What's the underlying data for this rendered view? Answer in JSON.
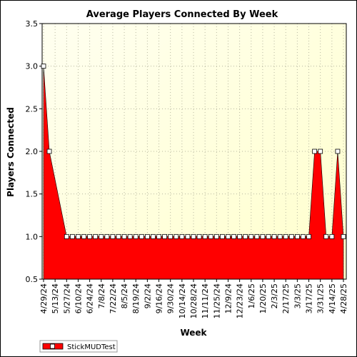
{
  "chart_data": {
    "type": "area",
    "title": "Average Players Connected By Week",
    "xlabel": "Week",
    "ylabel": "Players Connected",
    "ylim": [
      0.5,
      3.5
    ],
    "yticks": [
      "0.5",
      "1.0",
      "1.5",
      "2.0",
      "2.5",
      "3.0",
      "3.5"
    ],
    "grid": true,
    "legend_position": "bottom-left",
    "x_tick_labels": [
      "4/29/24",
      "5/13/24",
      "5/27/24",
      "6/10/24",
      "6/24/24",
      "7/8/24",
      "7/22/24",
      "8/5/24",
      "8/19/24",
      "9/2/24",
      "9/16/24",
      "9/30/24",
      "10/14/24",
      "10/28/24",
      "11/11/24",
      "11/25/24",
      "12/9/24",
      "12/23/24",
      "1/6/25",
      "1/20/25",
      "2/3/25",
      "2/17/25",
      "3/3/25",
      "3/17/25",
      "3/31/25",
      "4/14/25",
      "4/28/25"
    ],
    "x": [
      "4/29/24",
      "5/6/24",
      "5/13/24",
      "5/20/24",
      "5/27/24",
      "6/3/24",
      "6/10/24",
      "6/17/24",
      "6/24/24",
      "7/1/24",
      "7/8/24",
      "7/15/24",
      "7/22/24",
      "7/29/24",
      "8/5/24",
      "8/12/24",
      "8/19/24",
      "8/26/24",
      "9/2/24",
      "9/9/24",
      "9/16/24",
      "9/23/24",
      "9/30/24",
      "10/7/24",
      "10/14/24",
      "10/21/24",
      "10/28/24",
      "11/4/24",
      "11/11/24",
      "11/18/24",
      "11/25/24",
      "12/2/24",
      "12/9/24",
      "12/16/24",
      "12/23/24",
      "12/30/24",
      "1/6/25",
      "1/13/25",
      "1/20/25",
      "1/27/25",
      "2/3/25",
      "2/10/25",
      "2/17/25",
      "2/24/25",
      "3/3/25",
      "3/10/25",
      "3/17/25",
      "3/24/25",
      "3/31/25",
      "4/7/25",
      "4/14/25",
      "4/21/25",
      "4/28/25"
    ],
    "series": [
      {
        "name": "StickMUDTest",
        "color": "#ff0000",
        "marker_fill": "#ffffff",
        "values": [
          3.0,
          2.0,
          null,
          null,
          1.0,
          1.0,
          1.0,
          1.0,
          1.0,
          1.0,
          1.0,
          1.0,
          1.0,
          1.0,
          1.0,
          1.0,
          1.0,
          1.0,
          1.0,
          1.0,
          1.0,
          1.0,
          1.0,
          1.0,
          1.0,
          1.0,
          1.0,
          1.0,
          1.0,
          1.0,
          1.0,
          1.0,
          1.0,
          1.0,
          1.0,
          1.0,
          1.0,
          1.0,
          1.0,
          1.0,
          1.0,
          1.0,
          1.0,
          1.0,
          1.0,
          1.0,
          1.0,
          2.0,
          2.0,
          1.0,
          1.0,
          2.0,
          1.0
        ]
      }
    ]
  }
}
